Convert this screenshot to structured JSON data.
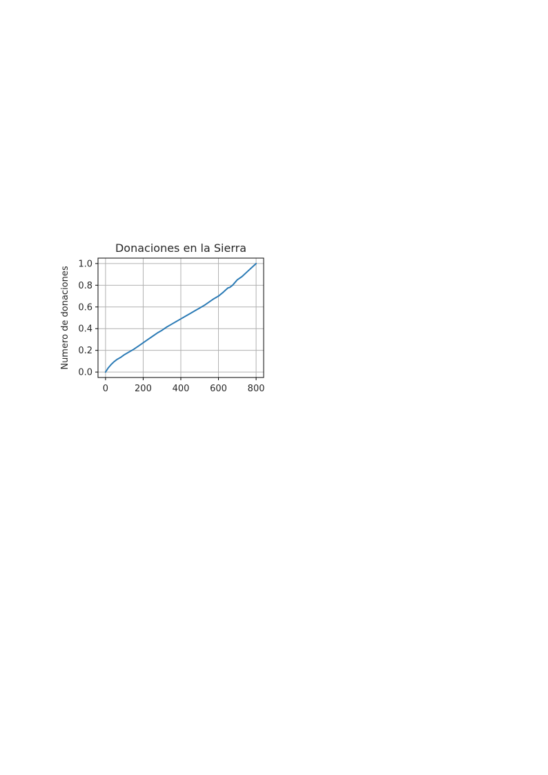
{
  "chart_data": {
    "type": "line",
    "title": "Donaciones en la Sierra",
    "xlabel": "",
    "ylabel": "Numero de donaciones",
    "xlim": [
      -40,
      840
    ],
    "ylim": [
      -0.05,
      1.05
    ],
    "xticks": [
      0,
      200,
      400,
      600,
      800
    ],
    "xtick_labels": [
      "0",
      "200",
      "400",
      "600",
      "800"
    ],
    "yticks": [
      0.0,
      0.2,
      0.4,
      0.6,
      0.8,
      1.0
    ],
    "ytick_labels": [
      "0.0",
      "0.2",
      "0.4",
      "0.6",
      "0.8",
      "1.0"
    ],
    "grid": true,
    "series": [
      {
        "color": "#2a7ab5",
        "x": [
          0,
          15,
          30,
          45,
          60,
          80,
          100,
          125,
          150,
          175,
          200,
          225,
          250,
          275,
          300,
          325,
          350,
          375,
          400,
          425,
          450,
          475,
          500,
          525,
          550,
          575,
          600,
          625,
          650,
          660,
          675,
          700,
          725,
          750,
          775,
          800
        ],
        "y": [
          0.0,
          0.04,
          0.07,
          0.095,
          0.115,
          0.135,
          0.16,
          0.185,
          0.21,
          0.24,
          0.27,
          0.3,
          0.33,
          0.36,
          0.385,
          0.415,
          0.44,
          0.465,
          0.49,
          0.515,
          0.54,
          0.565,
          0.59,
          0.615,
          0.645,
          0.675,
          0.7,
          0.735,
          0.775,
          0.78,
          0.8,
          0.85,
          0.88,
          0.92,
          0.96,
          1.0
        ]
      }
    ]
  }
}
